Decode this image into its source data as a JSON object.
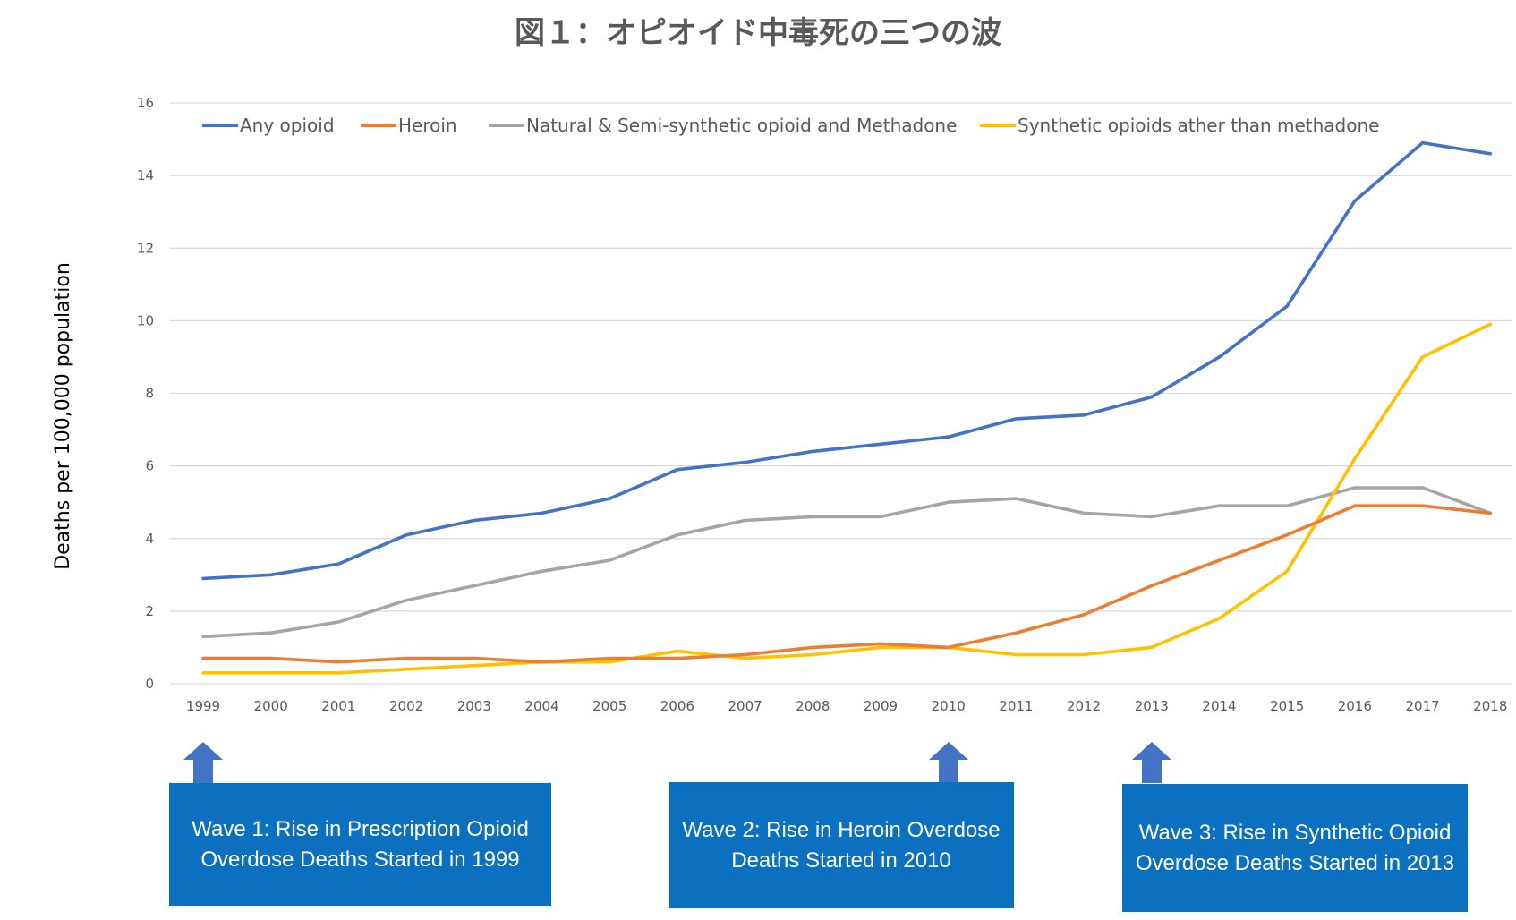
{
  "chart_data": {
    "type": "line",
    "title": "図１：オピオイド中毒死の三つの波",
    "ylabel": "Deaths per 100,000 population",
    "xlabel": "",
    "ylim": [
      0,
      16
    ],
    "yticks": [
      "0",
      "2",
      "4",
      "6",
      "8",
      "10",
      "12",
      "14",
      "16"
    ],
    "grid": true,
    "legend_position": "top",
    "categories": [
      "1999",
      "2000",
      "2001",
      "2002",
      "2003",
      "2004",
      "2005",
      "2006",
      "2007",
      "2008",
      "2009",
      "2010",
      "2011",
      "2012",
      "2013",
      "2014",
      "2015",
      "2016",
      "2017",
      "2018"
    ],
    "series": [
      {
        "name": "Any opioid",
        "color": "#4472c4",
        "values": [
          2.9,
          3.0,
          3.3,
          4.1,
          4.5,
          4.7,
          5.1,
          5.9,
          6.1,
          6.4,
          6.6,
          6.8,
          7.3,
          7.4,
          7.9,
          9.0,
          10.4,
          13.3,
          14.9,
          14.6
        ]
      },
      {
        "name": "Heroin",
        "color": "#ed7d31",
        "values": [
          0.7,
          0.7,
          0.6,
          0.7,
          0.7,
          0.6,
          0.7,
          0.7,
          0.8,
          1.0,
          1.1,
          1.0,
          1.4,
          1.9,
          2.7,
          3.4,
          4.1,
          4.9,
          4.9,
          4.7
        ]
      },
      {
        "name": "Natural & Semi-synthetic opioid and Methadone",
        "color": "#a5a5a5",
        "values": [
          1.3,
          1.4,
          1.7,
          2.3,
          2.7,
          3.1,
          3.4,
          4.1,
          4.5,
          4.6,
          4.6,
          5.0,
          5.1,
          4.7,
          4.6,
          4.9,
          4.9,
          5.4,
          5.4,
          4.7
        ]
      },
      {
        "name": "Synthetic opioids ather than methadone",
        "color": "#ffc000",
        "values": [
          0.3,
          0.3,
          0.3,
          0.4,
          0.5,
          0.6,
          0.6,
          0.9,
          0.7,
          0.8,
          1.0,
          1.0,
          0.8,
          0.8,
          1.0,
          1.8,
          3.1,
          6.2,
          9.0,
          9.9
        ]
      }
    ],
    "annotations": [
      {
        "text": "Wave 1: Rise in Prescription Opioid Overdose Deaths Started in 1999",
        "points_to": "1999",
        "color": "#0b70c0"
      },
      {
        "text": "Wave 2: Rise in Heroin Overdose Deaths Started in 2010",
        "points_to": "2010",
        "color": "#0b70c0"
      },
      {
        "text": "Wave 3: Rise in Synthetic Opioid Overdose Deaths Started in 2013",
        "points_to": "2013",
        "color": "#0b70c0"
      }
    ],
    "arrow_color": "#4472c4"
  }
}
